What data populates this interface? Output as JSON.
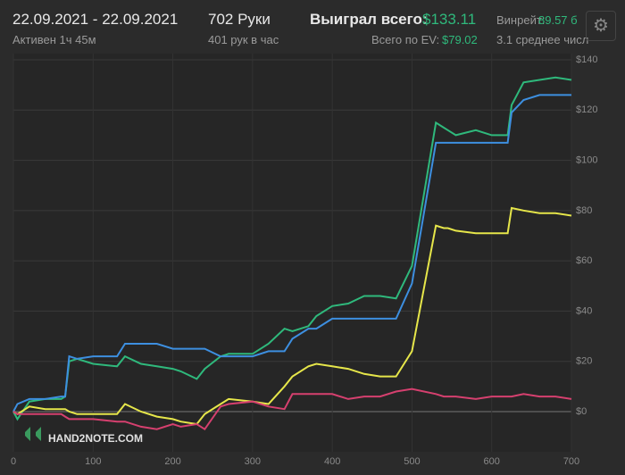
{
  "header": {
    "date_range": "22.09.2021 - 22.09.2021",
    "active": "Активен 1ч 45м",
    "hands": "702 Руки",
    "hands_per_hour": "401 рук в час",
    "won_label": "Выиграл всего:",
    "won_value": "$133.11",
    "ev_label": "Всего по EV:",
    "ev_value": "$79.02",
    "winrate_label": "Винрейт:",
    "winrate_value": "89.57 б",
    "avg": "3.1 среднее числ"
  },
  "logo": "HAND2NOTE.COM",
  "chart_data": {
    "type": "line",
    "x": [
      0,
      5,
      20,
      40,
      60,
      65,
      70,
      80,
      100,
      130,
      140,
      160,
      180,
      200,
      210,
      230,
      240,
      260,
      270,
      300,
      320,
      340,
      350,
      370,
      380,
      400,
      420,
      440,
      460,
      480,
      500,
      530,
      540,
      545,
      555,
      580,
      600,
      620,
      625,
      640,
      660,
      680,
      700
    ],
    "series": [
      {
        "color": "#2fb97c",
        "values": [
          0,
          -3,
          4,
          5,
          5,
          6,
          20,
          21,
          19,
          18,
          22,
          19,
          18,
          17,
          16,
          13,
          17,
          22,
          23,
          23,
          27,
          33,
          32,
          34,
          38,
          42,
          43,
          46,
          46,
          45,
          58,
          115,
          113,
          112,
          110,
          112,
          110,
          110,
          122,
          131,
          132,
          133,
          132
        ]
      },
      {
        "color": "#3d8fe0",
        "values": [
          0,
          3,
          5,
          5,
          6,
          6,
          22,
          21,
          22,
          22,
          27,
          27,
          27,
          25,
          25,
          25,
          25,
          22,
          22,
          22,
          24,
          24,
          29,
          33,
          33,
          37,
          37,
          37,
          37,
          37,
          51,
          107,
          107,
          107,
          107,
          107,
          107,
          107,
          119,
          124,
          126,
          126,
          126
        ]
      },
      {
        "color": "#e6e64a",
        "values": [
          0,
          -1,
          2,
          1,
          1,
          1,
          0,
          -1,
          -1,
          -1,
          3,
          0,
          -2,
          -3,
          -4,
          -5,
          -1,
          3,
          5,
          4,
          3,
          10,
          14,
          18,
          19,
          18,
          17,
          15,
          14,
          14,
          24,
          74,
          73,
          73,
          72,
          71,
          71,
          71,
          81,
          80,
          79,
          79,
          78
        ]
      },
      {
        "color": "#d6406f",
        "values": [
          0,
          -1,
          -1,
          -1,
          -1,
          -2,
          -3,
          -3,
          -3,
          -4,
          -4,
          -6,
          -7,
          -5,
          -6,
          -5,
          -7,
          2,
          3,
          4,
          2,
          1,
          7,
          7,
          7,
          7,
          5,
          6,
          6,
          8,
          9,
          7,
          6,
          6,
          6,
          5,
          6,
          6,
          6,
          7,
          6,
          6,
          5
        ]
      }
    ],
    "xlim": [
      0,
      700
    ],
    "xticks": [
      0,
      100,
      200,
      300,
      400,
      500,
      600,
      700
    ],
    "ylim": [
      -16,
      140
    ],
    "yticks": [
      {
        "value": 0,
        "label": "$0"
      },
      {
        "value": 20,
        "label": "$20"
      },
      {
        "value": 40,
        "label": "$40"
      },
      {
        "value": 60,
        "label": "$60"
      },
      {
        "value": 80,
        "label": "$80"
      },
      {
        "value": 100,
        "label": "$100"
      },
      {
        "value": 120,
        "label": "$120"
      },
      {
        "value": 140,
        "label": "$140"
      }
    ],
    "grid": true
  }
}
